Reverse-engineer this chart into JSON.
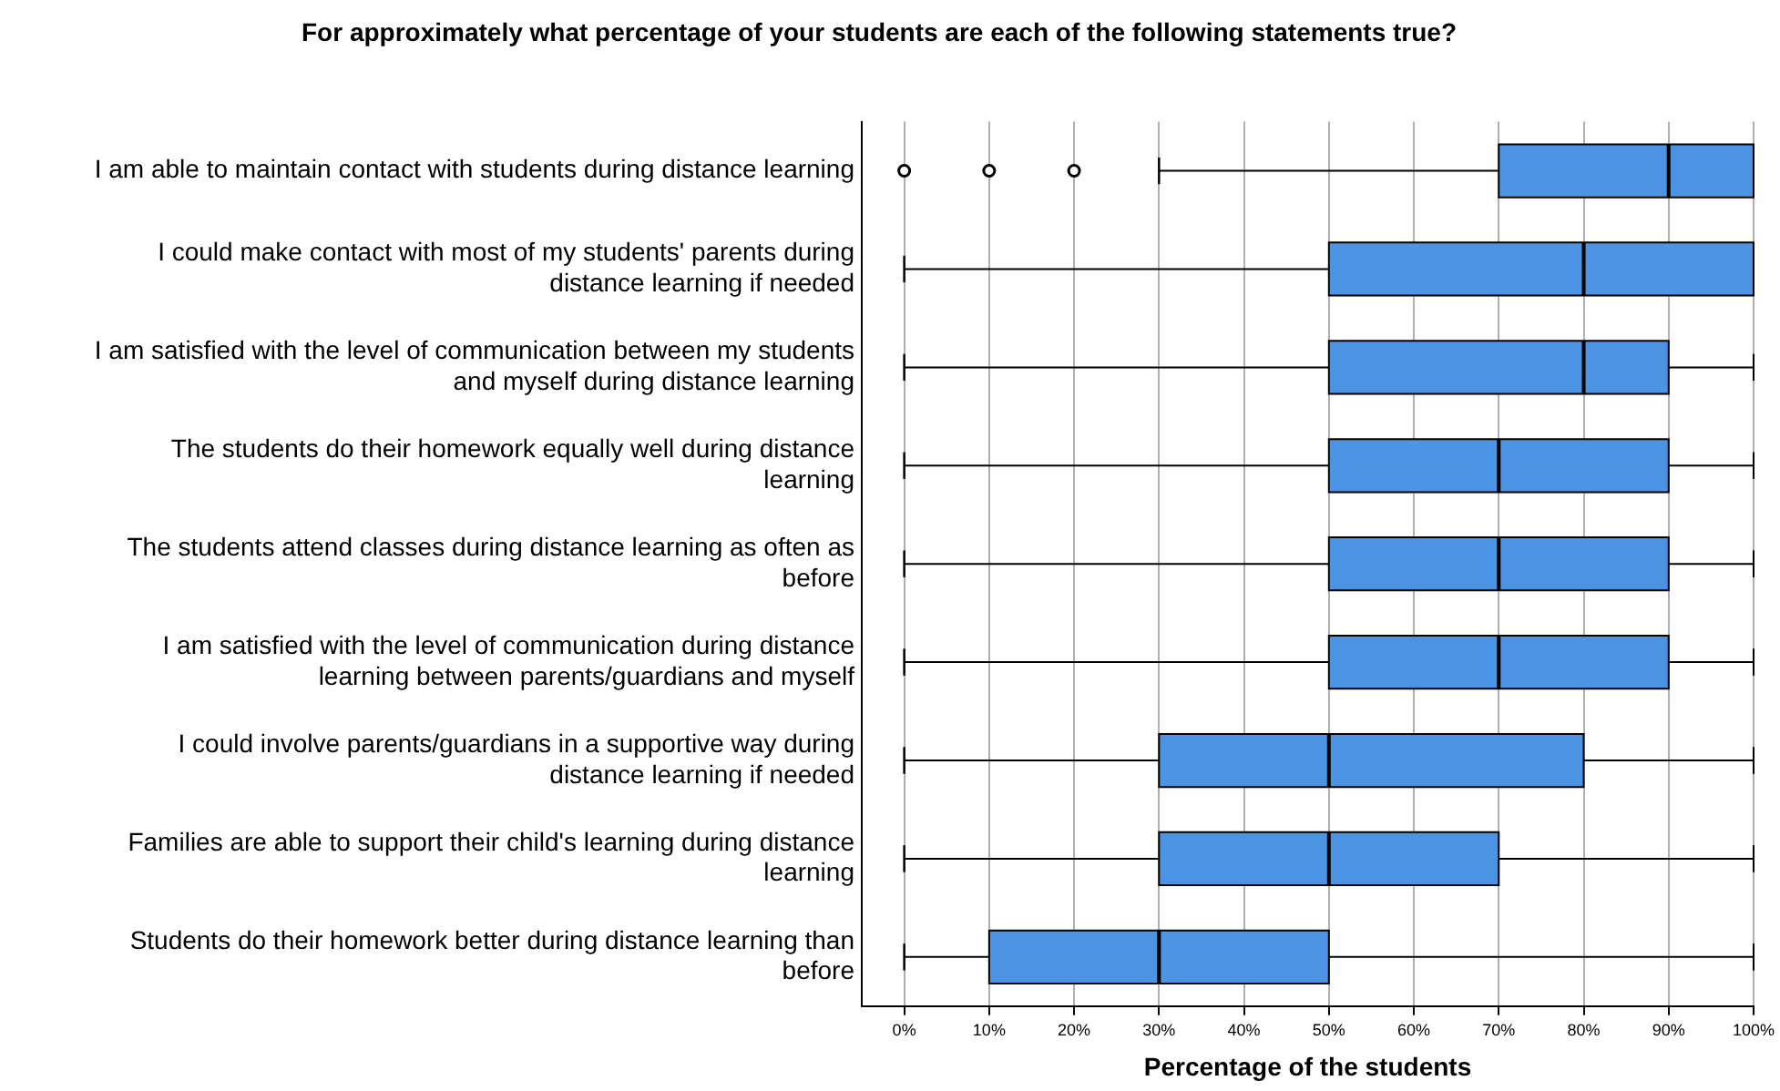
{
  "chart_data": {
    "type": "box",
    "title": "For approximately what percentage of your students are each of the following statements true?",
    "xlabel": "Percentage of the students",
    "orientation": "horizontal",
    "color": "#4a94e3",
    "categories": [
      "I am able to maintain contact with students during distance learning",
      "I could make contact with most of my students' parents during distance learning if needed",
      "I am satisfied with the level of communication between my students and myself during distance learning",
      "The students do their homework equally well during distance learning",
      "The students attend classes during distance learning as often as before",
      "I am satisfied with the level of communication during distance learning between parents/guardians and myself",
      "I could involve parents/guardians in a supportive way during distance learning if needed",
      "Families are able to support their child's learning during distance learning",
      "Students do their homework better during distance learning than before"
    ],
    "boxes": [
      {
        "low": 30,
        "q1": 70,
        "median": 90,
        "q3": 100,
        "high": 100,
        "outliers": [
          0,
          10,
          20
        ]
      },
      {
        "low": 0,
        "q1": 50,
        "median": 80,
        "q3": 100,
        "high": 100
      },
      {
        "low": 0,
        "q1": 50,
        "median": 80,
        "q3": 90,
        "high": 100
      },
      {
        "low": 0,
        "q1": 50,
        "median": 70,
        "q3": 90,
        "high": 100
      },
      {
        "low": 0,
        "q1": 50,
        "median": 70,
        "q3": 90,
        "high": 100
      },
      {
        "low": 0,
        "q1": 50,
        "median": 70,
        "q3": 90,
        "high": 100
      },
      {
        "low": 0,
        "q1": 30,
        "median": 50,
        "q3": 80,
        "high": 100
      },
      {
        "low": 0,
        "q1": 30,
        "median": 50,
        "q3": 70,
        "high": 100
      },
      {
        "low": 0,
        "q1": 10,
        "median": 30,
        "q3": 50,
        "high": 100
      }
    ],
    "xlim": [
      -5,
      100
    ],
    "xticks": [
      {
        "value": 0,
        "label": "0%"
      },
      {
        "value": 10,
        "label": "10%"
      },
      {
        "value": 20,
        "label": "20%"
      },
      {
        "value": 30,
        "label": "30%"
      },
      {
        "value": 40,
        "label": "40%"
      },
      {
        "value": 50,
        "label": "50%"
      },
      {
        "value": 60,
        "label": "60%"
      },
      {
        "value": 70,
        "label": "70%"
      },
      {
        "value": 80,
        "label": "80%"
      },
      {
        "value": 90,
        "label": "90%"
      },
      {
        "value": 100,
        "label": "100%"
      }
    ],
    "grid": "x"
  }
}
